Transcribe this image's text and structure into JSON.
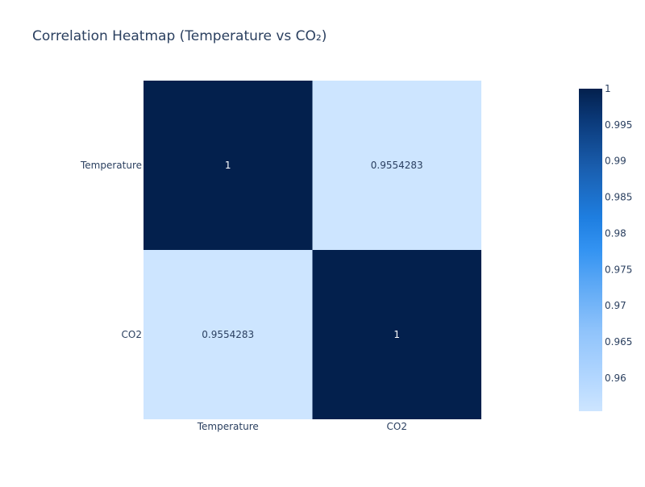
{
  "chart_data": {
    "type": "heatmap",
    "title": "Correlation Heatmap (Temperature vs CO₂)",
    "x_categories": [
      "Temperature",
      "CO2"
    ],
    "y_categories": [
      "Temperature",
      "CO2"
    ],
    "z": [
      [
        1,
        0.9554283
      ],
      [
        0.9554283,
        1
      ]
    ],
    "cell_labels": [
      [
        "1",
        "0.9554283"
      ],
      [
        "0.9554283",
        "1"
      ]
    ],
    "colorscale": {
      "min": 0.9554283,
      "max": 1,
      "stops": [
        [
          0,
          "#cde5ff"
        ],
        [
          0.1,
          "#b3d7ff"
        ],
        [
          0.25,
          "#8fc3fb"
        ],
        [
          0.4,
          "#5aa7f5"
        ],
        [
          0.5,
          "#3393f2"
        ],
        [
          0.6,
          "#1e7ee0"
        ],
        [
          0.75,
          "#1a5fb0"
        ],
        [
          0.9,
          "#0b3a7a"
        ],
        [
          1,
          "#03204d"
        ]
      ],
      "ticks": [
        0.96,
        0.965,
        0.97,
        0.975,
        0.98,
        0.985,
        0.99,
        0.995,
        1
      ],
      "tick_labels": [
        "0.96",
        "0.965",
        "0.97",
        "0.975",
        "0.98",
        "0.985",
        "0.99",
        "0.995",
        "1"
      ]
    }
  }
}
